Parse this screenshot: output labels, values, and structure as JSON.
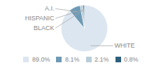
{
  "chart_data": {
    "type": "pie",
    "categories": [
      "WHITE",
      "A.I.",
      "HISPANIC",
      "BLACK"
    ],
    "values": [
      89.0,
      8.1,
      2.1,
      0.8
    ],
    "value_labels": [
      "89.0%",
      "8.1%",
      "2.1%",
      "0.8%"
    ],
    "colors": [
      "#dce6f0",
      "#6e9ab5",
      "#b8cdd9",
      "#2e5f7a"
    ],
    "legend": "bottom"
  }
}
